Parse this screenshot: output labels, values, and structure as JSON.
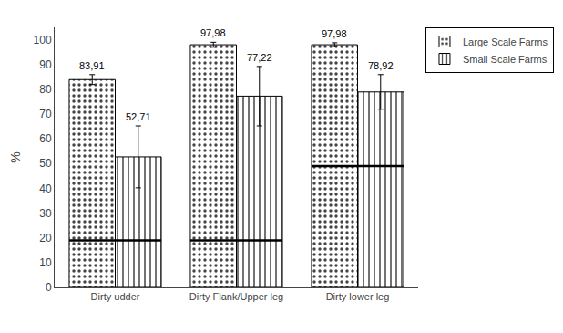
{
  "chart_data": {
    "type": "bar",
    "categories": [
      "Dirty udder",
      "Dirty Flank/Upper leg",
      "Dirty lower leg"
    ],
    "series": [
      {
        "name": "Large Scale Farms",
        "color": "#c8c8c8",
        "values": [
          83.91,
          97.98,
          97.98
        ],
        "errors": [
          2.0,
          1.0,
          0.8
        ],
        "value_labels": [
          "83,91",
          "97,98",
          "97,98"
        ]
      },
      {
        "name": "Small Scale Farms",
        "color": "#e8e8e8",
        "values": [
          52.71,
          77.22,
          78.92
        ],
        "errors": [
          12.5,
          12.0,
          7.0
        ],
        "value_labels": [
          "52,71",
          "77,22",
          "78,92"
        ]
      }
    ],
    "means": [
      19.0,
      19.0,
      49.0
    ],
    "ylabel": "%",
    "ylim": [
      0,
      105
    ],
    "yticks": [
      0,
      10,
      20,
      30,
      40,
      50,
      60,
      70,
      80,
      90,
      100
    ],
    "grid": false,
    "legend": "upper right",
    "data_labels": true
  }
}
